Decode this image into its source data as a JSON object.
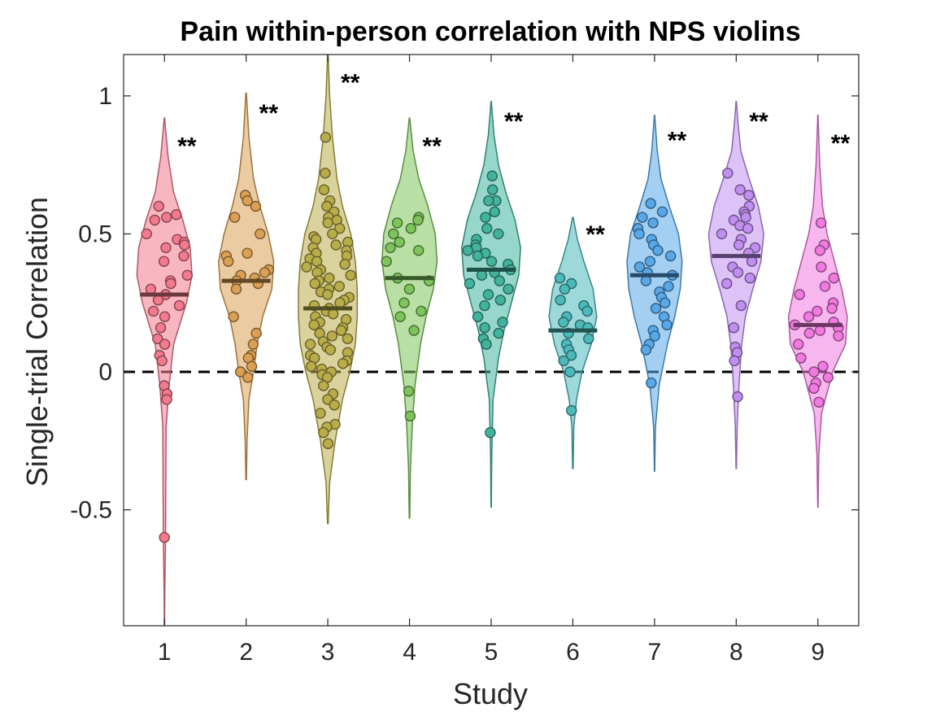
{
  "chart_data": {
    "type": "violin",
    "title": "Pain within-person correlation with NPS violins",
    "xlabel": "Study",
    "ylabel": "Single-trial Correlation",
    "categories": [
      "1",
      "2",
      "3",
      "4",
      "5",
      "6",
      "7",
      "8",
      "9"
    ],
    "ylim": [
      -0.92,
      1.15
    ],
    "yticks": [
      -0.5,
      0,
      0.5,
      1
    ],
    "ytick_labels": [
      "-0.5",
      "0",
      "0.5",
      "1"
    ],
    "reference_line": {
      "y": 0,
      "style": "dashed"
    },
    "significance_label": "**",
    "grid": false,
    "series": [
      {
        "study": "1",
        "color": "#f27a8c",
        "mean": 0.28,
        "violin": {
          "min": -0.93,
          "max": 0.92,
          "profile": [
            [
              -0.93,
              0.002
            ],
            [
              -0.8,
              0.004
            ],
            [
              -0.6,
              0.012
            ],
            [
              -0.4,
              0.015
            ],
            [
              -0.2,
              0.018
            ],
            [
              -0.05,
              0.05
            ],
            [
              0.1,
              0.1
            ],
            [
              0.25,
              0.24
            ],
            [
              0.35,
              0.3
            ],
            [
              0.45,
              0.28
            ],
            [
              0.55,
              0.2
            ],
            [
              0.65,
              0.1
            ],
            [
              0.78,
              0.04
            ],
            [
              0.92,
              0.002
            ]
          ]
        },
        "sig_y": 0.83,
        "points": [
          0.6,
          0.57,
          0.56,
          0.55,
          0.5,
          0.48,
          0.47,
          0.46,
          0.45,
          0.42,
          0.4,
          0.35,
          0.33,
          0.32,
          0.3,
          0.28,
          0.26,
          0.24,
          0.22,
          0.2,
          0.16,
          0.12,
          0.1,
          0.06,
          0.04,
          -0.05,
          -0.08,
          -0.1,
          -0.6
        ]
      },
      {
        "study": "2",
        "color": "#dba054",
        "mean": 0.33,
        "violin": {
          "min": -0.39,
          "max": 1.01,
          "profile": [
            [
              -0.39,
              0.003
            ],
            [
              -0.25,
              0.01
            ],
            [
              -0.1,
              0.03
            ],
            [
              0.0,
              0.08
            ],
            [
              0.1,
              0.12
            ],
            [
              0.2,
              0.18
            ],
            [
              0.3,
              0.28
            ],
            [
              0.4,
              0.3
            ],
            [
              0.5,
              0.24
            ],
            [
              0.6,
              0.15
            ],
            [
              0.7,
              0.08
            ],
            [
              0.85,
              0.03
            ],
            [
              1.01,
              0.003
            ]
          ]
        },
        "sig_y": 0.95,
        "points": [
          0.64,
          0.62,
          0.6,
          0.56,
          0.5,
          0.43,
          0.42,
          0.4,
          0.37,
          0.36,
          0.35,
          0.34,
          0.33,
          0.32,
          0.3,
          0.2,
          0.14,
          0.1,
          0.06,
          0.05,
          0.02,
          0.0,
          -0.02
        ]
      },
      {
        "study": "3",
        "color": "#b9ad4a",
        "mean": 0.23,
        "violin": {
          "min": -0.55,
          "max": 1.15,
          "profile": [
            [
              -0.55,
              0.003
            ],
            [
              -0.4,
              0.02
            ],
            [
              -0.25,
              0.08
            ],
            [
              -0.1,
              0.16
            ],
            [
              0.0,
              0.24
            ],
            [
              0.1,
              0.3
            ],
            [
              0.2,
              0.32
            ],
            [
              0.3,
              0.32
            ],
            [
              0.4,
              0.3
            ],
            [
              0.5,
              0.25
            ],
            [
              0.6,
              0.16
            ],
            [
              0.7,
              0.1
            ],
            [
              0.85,
              0.05
            ],
            [
              1.0,
              0.02
            ],
            [
              1.15,
              0.003
            ]
          ]
        },
        "sig_y": 1.06,
        "points": [
          0.85,
          0.72,
          0.66,
          0.62,
          0.6,
          0.58,
          0.56,
          0.55,
          0.54,
          0.52,
          0.5,
          0.49,
          0.48,
          0.47,
          0.46,
          0.45,
          0.44,
          0.43,
          0.42,
          0.41,
          0.4,
          0.39,
          0.38,
          0.37,
          0.36,
          0.35,
          0.34,
          0.33,
          0.32,
          0.31,
          0.3,
          0.29,
          0.28,
          0.27,
          0.26,
          0.25,
          0.24,
          0.23,
          0.22,
          0.21,
          0.2,
          0.19,
          0.18,
          0.17,
          0.16,
          0.15,
          0.14,
          0.13,
          0.12,
          0.11,
          0.1,
          0.09,
          0.08,
          0.07,
          0.06,
          0.05,
          0.04,
          0.03,
          0.02,
          0.01,
          0.0,
          -0.01,
          -0.02,
          -0.05,
          -0.08,
          -0.1,
          -0.12,
          -0.15,
          -0.19,
          -0.2,
          -0.22,
          -0.26
        ]
      },
      {
        "study": "4",
        "color": "#7dc55a",
        "mean": 0.34,
        "violin": {
          "min": -0.53,
          "max": 0.92,
          "profile": [
            [
              -0.53,
              0.003
            ],
            [
              -0.35,
              0.01
            ],
            [
              -0.2,
              0.03
            ],
            [
              -0.05,
              0.06
            ],
            [
              0.1,
              0.12
            ],
            [
              0.2,
              0.18
            ],
            [
              0.3,
              0.26
            ],
            [
              0.4,
              0.3
            ],
            [
              0.5,
              0.28
            ],
            [
              0.6,
              0.2
            ],
            [
              0.7,
              0.1
            ],
            [
              0.8,
              0.04
            ],
            [
              0.92,
              0.002
            ]
          ]
        },
        "sig_y": 0.83,
        "points": [
          0.56,
          0.55,
          0.54,
          0.52,
          0.5,
          0.47,
          0.45,
          0.44,
          0.4,
          0.34,
          0.33,
          0.3,
          0.25,
          0.22,
          0.2,
          0.15,
          -0.07,
          -0.16
        ]
      },
      {
        "study": "5",
        "color": "#42b49e",
        "mean": 0.37,
        "violin": {
          "min": -0.49,
          "max": 0.98,
          "profile": [
            [
              -0.49,
              0.002
            ],
            [
              -0.3,
              0.006
            ],
            [
              -0.1,
              0.02
            ],
            [
              0.05,
              0.08
            ],
            [
              0.15,
              0.14
            ],
            [
              0.25,
              0.22
            ],
            [
              0.35,
              0.3
            ],
            [
              0.45,
              0.32
            ],
            [
              0.55,
              0.26
            ],
            [
              0.65,
              0.16
            ],
            [
              0.75,
              0.08
            ],
            [
              0.86,
              0.03
            ],
            [
              0.98,
              0.002
            ]
          ]
        },
        "sig_y": 0.92,
        "points": [
          0.71,
          0.66,
          0.62,
          0.62,
          0.58,
          0.56,
          0.52,
          0.5,
          0.48,
          0.46,
          0.45,
          0.44,
          0.43,
          0.42,
          0.4,
          0.39,
          0.37,
          0.36,
          0.35,
          0.33,
          0.32,
          0.3,
          0.28,
          0.26,
          0.24,
          0.2,
          0.18,
          0.16,
          0.14,
          0.12,
          0.1,
          -0.22
        ]
      },
      {
        "study": "6",
        "color": "#4cbabb",
        "mean": 0.15,
        "violin": {
          "min": -0.35,
          "max": 0.56,
          "profile": [
            [
              -0.35,
              0.003
            ],
            [
              -0.2,
              0.01
            ],
            [
              -0.1,
              0.04
            ],
            [
              0.0,
              0.1
            ],
            [
              0.1,
              0.2
            ],
            [
              0.2,
              0.26
            ],
            [
              0.3,
              0.22
            ],
            [
              0.4,
              0.12
            ],
            [
              0.48,
              0.05
            ],
            [
              0.56,
              0.003
            ]
          ]
        },
        "sig_y": 0.51,
        "points": [
          0.34,
          0.32,
          0.3,
          0.26,
          0.24,
          0.22,
          0.2,
          0.18,
          0.17,
          0.16,
          0.14,
          0.12,
          0.1,
          0.08,
          0.06,
          0.04,
          0.0,
          -0.14
        ]
      },
      {
        "study": "7",
        "color": "#58a8e8",
        "mean": 0.35,
        "violin": {
          "min": -0.36,
          "max": 0.93,
          "profile": [
            [
              -0.36,
              0.002
            ],
            [
              -0.2,
              0.01
            ],
            [
              -0.05,
              0.05
            ],
            [
              0.1,
              0.14
            ],
            [
              0.2,
              0.22
            ],
            [
              0.3,
              0.28
            ],
            [
              0.4,
              0.3
            ],
            [
              0.5,
              0.26
            ],
            [
              0.6,
              0.16
            ],
            [
              0.7,
              0.07
            ],
            [
              0.8,
              0.03
            ],
            [
              0.93,
              0.002
            ]
          ]
        },
        "sig_y": 0.85,
        "points": [
          0.61,
          0.58,
          0.56,
          0.54,
          0.52,
          0.5,
          0.48,
          0.46,
          0.44,
          0.42,
          0.4,
          0.38,
          0.36,
          0.35,
          0.33,
          0.31,
          0.29,
          0.27,
          0.25,
          0.23,
          0.2,
          0.17,
          0.15,
          0.13,
          0.1,
          0.08,
          -0.04
        ]
      },
      {
        "study": "8",
        "color": "#c08ff0",
        "mean": 0.42,
        "violin": {
          "min": -0.35,
          "max": 0.98,
          "profile": [
            [
              -0.35,
              0.002
            ],
            [
              -0.2,
              0.01
            ],
            [
              -0.05,
              0.03
            ],
            [
              0.1,
              0.06
            ],
            [
              0.2,
              0.1
            ],
            [
              0.3,
              0.18
            ],
            [
              0.4,
              0.27
            ],
            [
              0.5,
              0.3
            ],
            [
              0.6,
              0.24
            ],
            [
              0.7,
              0.14
            ],
            [
              0.8,
              0.05
            ],
            [
              0.9,
              0.02
            ],
            [
              0.98,
              0.002
            ]
          ]
        },
        "sig_y": 0.92,
        "points": [
          0.72,
          0.66,
          0.64,
          0.6,
          0.58,
          0.57,
          0.56,
          0.55,
          0.53,
          0.52,
          0.5,
          0.48,
          0.46,
          0.45,
          0.43,
          0.4,
          0.38,
          0.36,
          0.34,
          0.32,
          0.24,
          0.16,
          0.09,
          0.07,
          0.04,
          -0.09
        ]
      },
      {
        "study": "9",
        "color": "#f07ae0",
        "mean": 0.17,
        "violin": {
          "min": -0.49,
          "max": 0.93,
          "profile": [
            [
              -0.49,
              0.002
            ],
            [
              -0.3,
              0.01
            ],
            [
              -0.15,
              0.04
            ],
            [
              0.0,
              0.16
            ],
            [
              0.1,
              0.3
            ],
            [
              0.2,
              0.32
            ],
            [
              0.3,
              0.26
            ],
            [
              0.4,
              0.18
            ],
            [
              0.5,
              0.1
            ],
            [
              0.6,
              0.05
            ],
            [
              0.75,
              0.02
            ],
            [
              0.93,
              0.002
            ]
          ]
        },
        "sig_y": 0.84,
        "points": [
          0.54,
          0.46,
          0.44,
          0.38,
          0.34,
          0.31,
          0.28,
          0.25,
          0.23,
          0.22,
          0.2,
          0.18,
          0.17,
          0.16,
          0.15,
          0.14,
          0.13,
          0.1,
          0.05,
          0.02,
          0.0,
          -0.02,
          -0.04,
          -0.06,
          -0.11
        ]
      }
    ]
  }
}
